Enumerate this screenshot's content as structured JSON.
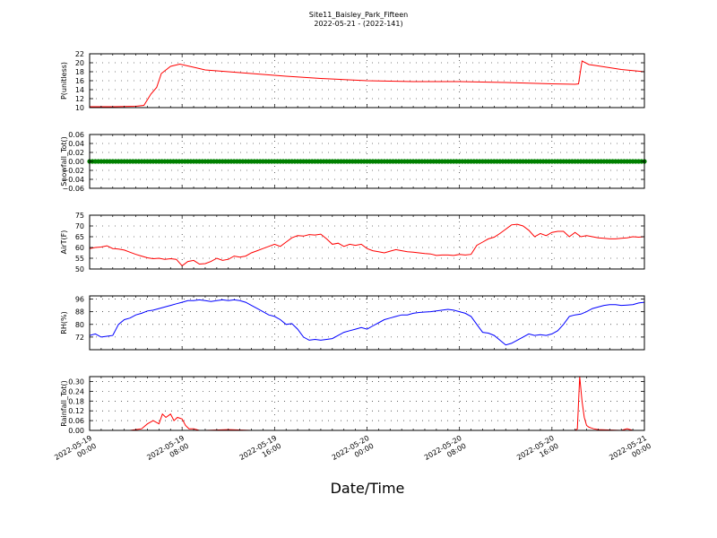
{
  "title": {
    "line1": "Site11_Baisley_Park_Fifteen",
    "line2": "2022-05-21 - (2022-141)"
  },
  "xlabel": "Date/Time",
  "colors": {
    "red": "#ff0000",
    "green": "#008000",
    "blue": "#0000ff"
  },
  "chart_data": [
    {
      "type": "line",
      "ylabel": "P(unitless)",
      "color": "#ff0000",
      "ylim": [
        10,
        22
      ],
      "yticks": [
        "10",
        "12",
        "14",
        "16",
        "18",
        "20",
        "22"
      ],
      "xlim": [
        0,
        48
      ],
      "x_ticklabels": [
        [
          "2022-05-19",
          "00:00"
        ],
        [
          "2022-05-19",
          "08:00"
        ],
        [
          "2022-05-19",
          "16:00"
        ],
        [
          "2022-05-20",
          "00:00"
        ],
        [
          "2022-05-20",
          "08:00"
        ],
        [
          "2022-05-20",
          "16:00"
        ],
        [
          "2022-05-21",
          "00:00"
        ]
      ],
      "grid": true,
      "x": [
        0,
        2,
        4,
        4.7,
        5.3,
        5.8,
        6.2,
        7,
        7.8,
        9,
        10,
        12,
        14,
        17,
        20,
        24,
        28,
        32,
        36,
        40,
        42,
        42.3,
        42.6,
        43.2,
        44,
        46,
        48
      ],
      "y": [
        10.2,
        10.2,
        10.3,
        10.5,
        13,
        14.5,
        17.6,
        19.2,
        19.7,
        19,
        18.4,
        18,
        17.6,
        17,
        16.5,
        16,
        15.8,
        15.8,
        15.6,
        15.3,
        15.2,
        15.3,
        20.4,
        19.6,
        19.3,
        18.5,
        18
      ]
    },
    {
      "type": "scatter",
      "ylabel": "Snowfall_Tot()",
      "color": "#008000",
      "ylim": [
        -0.06,
        0.06
      ],
      "yticks": [
        "−0.06",
        "−0.04",
        "−0.02",
        "0.00",
        "0.02",
        "0.04",
        "0.06"
      ],
      "xlim": [
        0,
        48
      ],
      "grid": true,
      "x_start": 0,
      "x_end": 48,
      "n_points": 193,
      "value": 0.0
    },
    {
      "type": "line",
      "ylabel": "AirT(F)",
      "color": "#ff0000",
      "ylim": [
        50,
        75
      ],
      "yticks": [
        "50",
        "55",
        "60",
        "65",
        "70",
        "75"
      ],
      "xlim": [
        0,
        48
      ],
      "grid": true,
      "x": [
        0,
        0.5,
        1,
        1.5,
        2,
        2.5,
        3,
        3.5,
        4,
        4.5,
        5,
        5.5,
        6,
        6.5,
        7,
        7.5,
        8,
        8.5,
        9,
        9.5,
        10,
        10.5,
        11,
        11.5,
        12,
        12.5,
        13,
        13.5,
        14,
        14.5,
        15,
        15.5,
        16,
        16.5,
        17,
        17.5,
        18,
        18.5,
        19,
        19.5,
        20,
        20.5,
        21,
        21.5,
        22,
        22.5,
        23,
        23.5,
        24,
        24.5,
        25,
        25.5,
        26,
        26.5,
        27,
        27.5,
        28,
        28.5,
        29,
        29.5,
        30,
        30.5,
        31,
        31.5,
        32,
        32.5,
        33,
        33.5,
        34,
        34.5,
        35,
        35.5,
        36,
        36.5,
        37,
        37.5,
        38,
        38.5,
        39,
        39.5,
        40,
        40.5,
        41,
        41.5,
        42,
        42.5,
        43,
        43.5,
        44,
        44.5,
        45,
        45.5,
        46,
        46.5,
        47,
        47.5,
        48
      ],
      "y": [
        59.5,
        60,
        60.2,
        60.8,
        59.5,
        59.3,
        58.8,
        57.8,
        56.8,
        56,
        55.2,
        54.8,
        55,
        54.5,
        54.8,
        54.5,
        51.5,
        53.5,
        54,
        52.3,
        52.5,
        53.5,
        55,
        54,
        54.5,
        56,
        55.5,
        56,
        57.5,
        58.5,
        59.5,
        60.5,
        61.5,
        60.5,
        62.5,
        64.5,
        65.5,
        65.3,
        66,
        65.8,
        66.2,
        64,
        61.5,
        62,
        60.5,
        61.5,
        61,
        61.5,
        59.5,
        58.5,
        58,
        57.5,
        58.3,
        59,
        58.5,
        58,
        57.8,
        57.5,
        57.2,
        57,
        56.3,
        56.5,
        56.5,
        56.3,
        56.8,
        56.5,
        56.8,
        61,
        62.5,
        64,
        64.8,
        66.5,
        68.5,
        70.5,
        70.8,
        70,
        68,
        65,
        66.5,
        65.5,
        67,
        67.5,
        67.5,
        65,
        67,
        65,
        65.5,
        65,
        64.5,
        64.3,
        64,
        64,
        64.3,
        64.5,
        65,
        64.8,
        65
      ]
    },
    {
      "type": "line",
      "ylabel": "RH(%)",
      "color": "#0000ff",
      "ylim": [
        64,
        98
      ],
      "yticks": [
        "72",
        "80",
        "88",
        "96"
      ],
      "xlim": [
        0,
        48
      ],
      "grid": true,
      "x": [
        0,
        0.5,
        1,
        1.5,
        2,
        2.5,
        3,
        3.5,
        4,
        4.5,
        5,
        5.5,
        6,
        6.5,
        7,
        7.5,
        8,
        8.5,
        9,
        9.5,
        10,
        10.5,
        11,
        11.5,
        12,
        12.5,
        13,
        13.5,
        14,
        14.5,
        15,
        15.5,
        16,
        16.5,
        17,
        17.5,
        18,
        18.5,
        19,
        19.5,
        20,
        20.5,
        21,
        21.5,
        22,
        22.5,
        23,
        23.5,
        24,
        24.5,
        25,
        25.5,
        26,
        26.5,
        27,
        27.5,
        28,
        28.5,
        29,
        29.5,
        30,
        30.5,
        31,
        31.5,
        32,
        32.5,
        33,
        33.5,
        34,
        34.5,
        35,
        35.5,
        36,
        36.5,
        37,
        37.5,
        38,
        38.5,
        39,
        39.5,
        40,
        40.5,
        41,
        41.5,
        42,
        42.5,
        43,
        43.5,
        44,
        44.5,
        45,
        45.5,
        46,
        46.5,
        47,
        47.5,
        48
      ],
      "y": [
        73,
        74,
        72,
        72.5,
        73,
        80,
        83,
        84,
        86,
        87,
        88.5,
        89,
        90,
        91,
        92,
        93,
        94,
        95,
        95,
        95.5,
        95,
        94.5,
        95,
        95.5,
        95,
        95.5,
        95,
        94,
        92,
        90,
        88,
        86,
        85,
        83,
        80,
        80.5,
        77,
        72,
        70,
        70.5,
        70,
        70.5,
        71,
        73,
        75,
        76,
        77,
        78,
        77,
        79,
        81,
        83,
        84,
        85,
        86,
        86,
        87,
        87.5,
        87.8,
        88,
        88.5,
        89,
        89.5,
        89,
        88,
        87,
        85,
        80,
        75,
        74.5,
        73,
        70,
        67,
        68,
        70,
        72,
        74,
        73,
        73.5,
        73,
        74,
        76,
        80,
        85,
        86,
        86.5,
        88,
        90,
        91,
        92,
        92.5,
        92.5,
        92,
        92.2,
        92.5,
        93.5,
        94
      ]
    },
    {
      "type": "line",
      "ylabel": "Rainfall_Tot()",
      "color": "#ff0000",
      "ylim": [
        0,
        0.33
      ],
      "yticks": [
        "0.00",
        "0.06",
        "0.12",
        "0.18",
        "0.24",
        "0.30"
      ],
      "xlim": [
        0,
        48
      ],
      "grid": true,
      "x": [
        0,
        3.5,
        4,
        4.5,
        5,
        5.5,
        6,
        6.3,
        6.6,
        7,
        7.3,
        7.6,
        8,
        8.3,
        8.6,
        9,
        9.5,
        10,
        12,
        14,
        41,
        42,
        42.2,
        42.4,
        42.6,
        42.8,
        43,
        43.2,
        43.4,
        43.6,
        44,
        46,
        46.5,
        47,
        48
      ],
      "y": [
        0,
        0,
        0.005,
        0.01,
        0.04,
        0.06,
        0.04,
        0.1,
        0.08,
        0.1,
        0.06,
        0.08,
        0.07,
        0.03,
        0.01,
        0.01,
        0,
        0,
        0.005,
        0,
        0,
        0,
        0.01,
        0.33,
        0.18,
        0.08,
        0.03,
        0.02,
        0.015,
        0.01,
        0.005,
        0,
        0.01,
        0,
        0
      ]
    }
  ]
}
